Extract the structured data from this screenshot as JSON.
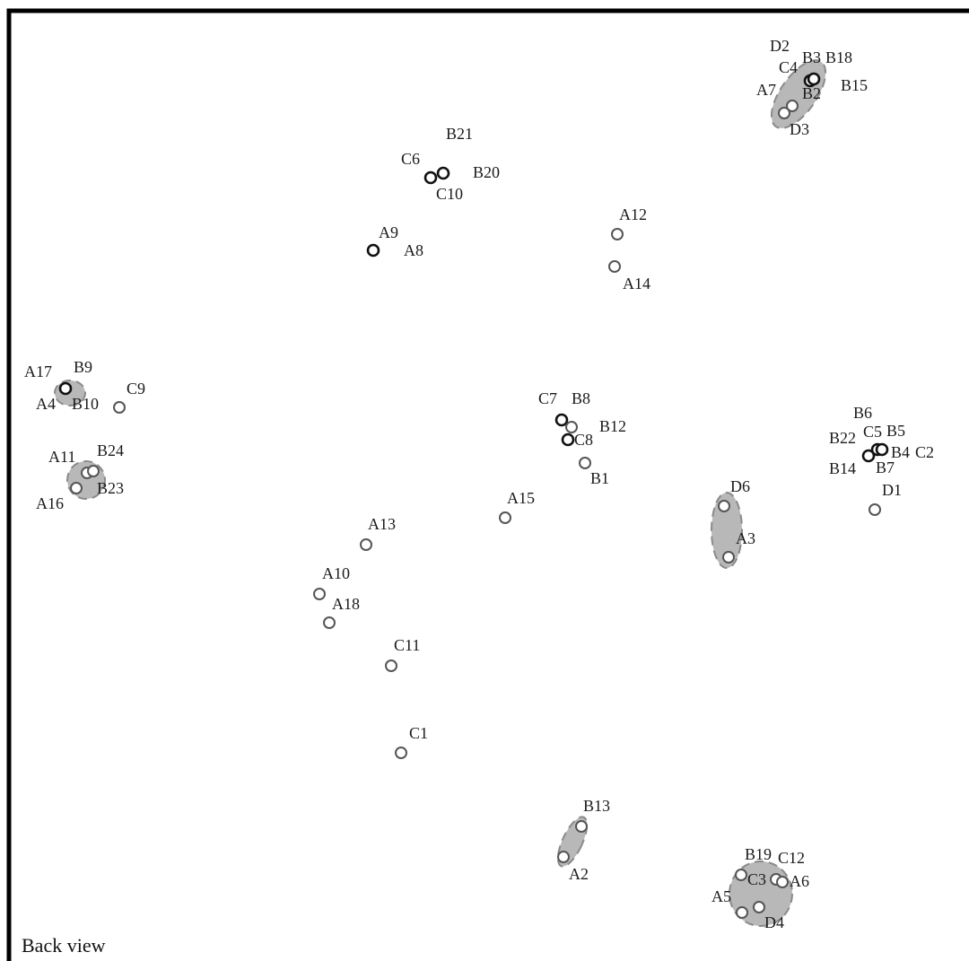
{
  "caption": "Back view",
  "clusters": [
    {
      "id": "top-right"
    },
    {
      "id": "left-a17"
    },
    {
      "id": "left-a11"
    },
    {
      "id": "mid-d6"
    },
    {
      "id": "bottom-b13"
    },
    {
      "id": "bottom-b19"
    }
  ],
  "points": [
    {
      "label": "D2"
    },
    {
      "label": "C4"
    },
    {
      "label": "B3"
    },
    {
      "label": "B18"
    },
    {
      "label": "B15"
    },
    {
      "label": "A7"
    },
    {
      "label": "B2"
    },
    {
      "label": "D3"
    },
    {
      "label": "B21"
    },
    {
      "label": "C6"
    },
    {
      "label": "B20"
    },
    {
      "label": "C10"
    },
    {
      "label": "A9"
    },
    {
      "label": "A8"
    },
    {
      "label": "A12"
    },
    {
      "label": "A14"
    },
    {
      "label": "A17"
    },
    {
      "label": "B9"
    },
    {
      "label": "A4"
    },
    {
      "label": "B10"
    },
    {
      "label": "C9"
    },
    {
      "label": "A11"
    },
    {
      "label": "B24"
    },
    {
      "label": "B23"
    },
    {
      "label": "A16"
    },
    {
      "label": "C7"
    },
    {
      "label": "B8"
    },
    {
      "label": "B12"
    },
    {
      "label": "C8"
    },
    {
      "label": "B1"
    },
    {
      "label": "B6"
    },
    {
      "label": "B22"
    },
    {
      "label": "C5"
    },
    {
      "label": "B5"
    },
    {
      "label": "B4"
    },
    {
      "label": "C2"
    },
    {
      "label": "B14"
    },
    {
      "label": "B7"
    },
    {
      "label": "D1"
    },
    {
      "label": "D6"
    },
    {
      "label": "A3"
    },
    {
      "label": "A15"
    },
    {
      "label": "A13"
    },
    {
      "label": "A10"
    },
    {
      "label": "A18"
    },
    {
      "label": "C11"
    },
    {
      "label": "C1"
    },
    {
      "label": "B13"
    },
    {
      "label": "A2"
    },
    {
      "label": "B19"
    },
    {
      "label": "C12"
    },
    {
      "label": "C3"
    },
    {
      "label": "A6"
    },
    {
      "label": "A5"
    },
    {
      "label": "D4"
    }
  ]
}
